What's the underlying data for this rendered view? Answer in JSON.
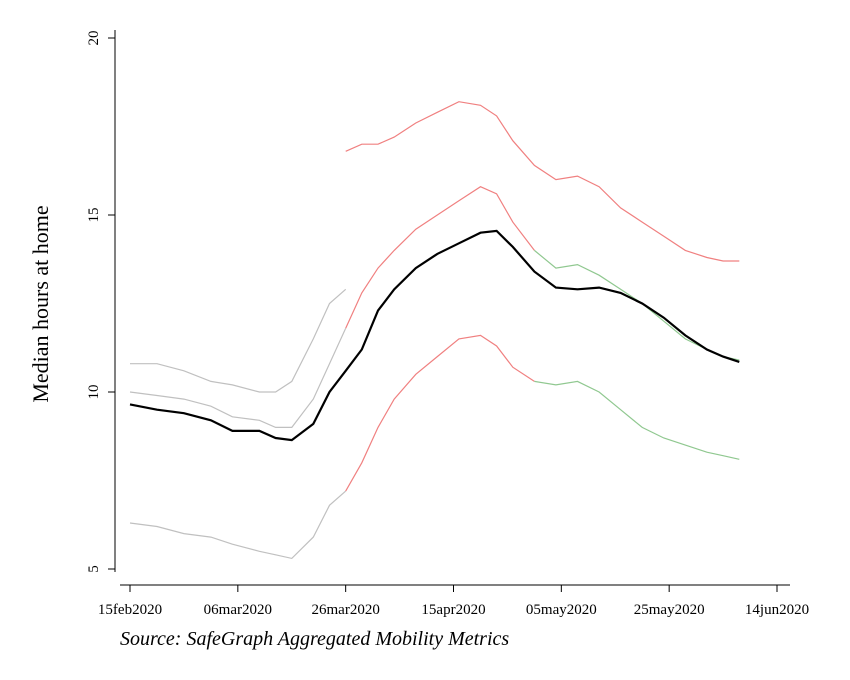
{
  "chart_data": {
    "type": "line",
    "ylabel": "Median hours at home",
    "source": "Source: SafeGraph Aggregated Mobility Metrics",
    "x": [
      "2020-02-15",
      "2020-02-20",
      "2020-02-25",
      "2020-03-01",
      "2020-03-05",
      "2020-03-10",
      "2020-03-13",
      "2020-03-16",
      "2020-03-20",
      "2020-03-23",
      "2020-03-26",
      "2020-03-29",
      "2020-04-01",
      "2020-04-04",
      "2020-04-08",
      "2020-04-12",
      "2020-04-16",
      "2020-04-20",
      "2020-04-23",
      "2020-04-26",
      "2020-04-30",
      "2020-05-04",
      "2020-05-08",
      "2020-05-12",
      "2020-05-16",
      "2020-05-20",
      "2020-05-24",
      "2020-05-28",
      "2020-06-01",
      "2020-06-04",
      "2020-06-07"
    ],
    "series": [
      {
        "color": "#c0c0c0",
        "values": [
          10.8,
          10.8,
          10.6,
          10.3,
          10.2,
          10.0,
          10.0,
          10.3,
          11.5,
          12.5,
          12.9,
          null,
          null,
          null,
          null,
          null,
          null,
          null,
          null,
          null,
          null,
          null,
          null,
          null,
          null,
          null,
          null,
          null,
          null,
          null,
          null
        ]
      },
      {
        "color": "#f08080",
        "values": [
          null,
          null,
          null,
          null,
          null,
          null,
          null,
          null,
          null,
          null,
          16.8,
          17.0,
          17.0,
          17.2,
          17.6,
          17.9,
          18.2,
          18.1,
          17.8,
          17.1,
          16.4,
          16.0,
          16.1,
          15.8,
          15.2,
          14.8,
          14.4,
          14.0,
          13.8,
          13.7,
          13.7
        ]
      },
      {
        "color": "#c0c0c0",
        "values": [
          10.0,
          9.9,
          9.8,
          9.6,
          9.3,
          9.2,
          9.0,
          9.0,
          9.8,
          10.8,
          11.8,
          null,
          null,
          null,
          null,
          null,
          null,
          null,
          null,
          null,
          null,
          null,
          null,
          null,
          null,
          null,
          null,
          null,
          null,
          null,
          null
        ]
      },
      {
        "color": "#f08080",
        "values": [
          null,
          null,
          null,
          null,
          null,
          null,
          null,
          null,
          null,
          null,
          11.8,
          12.8,
          13.5,
          14.0,
          14.6,
          15.0,
          15.4,
          15.8,
          15.6,
          14.8,
          14.0,
          null,
          null,
          null,
          null,
          null,
          null,
          null,
          null,
          null,
          null
        ]
      },
      {
        "color": "#90c890",
        "values": [
          null,
          null,
          null,
          null,
          null,
          null,
          null,
          null,
          null,
          null,
          null,
          null,
          null,
          null,
          null,
          null,
          null,
          null,
          null,
          null,
          14.0,
          13.5,
          13.6,
          13.3,
          12.9,
          12.5,
          12.0,
          11.5,
          11.2,
          11.0,
          10.9
        ]
      },
      {
        "color": "#c0c0c0",
        "values": [
          6.3,
          6.2,
          6.0,
          5.9,
          5.7,
          5.5,
          5.4,
          5.3,
          5.9,
          6.8,
          7.2,
          null,
          null,
          null,
          null,
          null,
          null,
          null,
          null,
          null,
          null,
          null,
          null,
          null,
          null,
          null,
          null,
          null,
          null,
          null,
          null
        ]
      },
      {
        "color": "#f08080",
        "values": [
          null,
          null,
          null,
          null,
          null,
          null,
          null,
          null,
          null,
          null,
          7.2,
          8.0,
          9.0,
          9.8,
          10.5,
          11.0,
          11.5,
          11.6,
          11.3,
          10.7,
          10.3,
          null,
          null,
          null,
          null,
          null,
          null,
          null,
          null,
          null,
          null
        ]
      },
      {
        "color": "#90c890",
        "values": [
          null,
          null,
          null,
          null,
          null,
          null,
          null,
          null,
          null,
          null,
          null,
          null,
          null,
          null,
          null,
          null,
          null,
          null,
          null,
          null,
          10.3,
          10.2,
          10.3,
          10.0,
          9.5,
          9.0,
          8.7,
          8.5,
          8.3,
          8.2,
          8.1
        ]
      },
      {
        "color": "#000000",
        "values": [
          9.65,
          9.5,
          9.4,
          9.2,
          8.9,
          8.9,
          8.7,
          8.64,
          9.1,
          10.0,
          10.6,
          11.2,
          12.3,
          12.9,
          13.5,
          13.9,
          14.2,
          14.5,
          14.55,
          14.1,
          13.4,
          12.95,
          12.9,
          12.95,
          12.8,
          12.5,
          12.1,
          11.6,
          11.2,
          11.0,
          10.85
        ]
      }
    ],
    "xlim": [
      "2020-02-15",
      "2020-06-14"
    ],
    "xticks": [
      {
        "value": "2020-02-15",
        "label": "15feb2020"
      },
      {
        "value": "2020-03-06",
        "label": "06mar2020"
      },
      {
        "value": "2020-03-26",
        "label": "26mar2020"
      },
      {
        "value": "2020-04-15",
        "label": "15apr2020"
      },
      {
        "value": "2020-05-05",
        "label": "05may2020"
      },
      {
        "value": "2020-05-25",
        "label": "25may2020"
      },
      {
        "value": "2020-06-14",
        "label": "14jun2020"
      }
    ],
    "ylim": [
      5,
      20
    ],
    "yticks": [
      5,
      10,
      15,
      20
    ]
  }
}
